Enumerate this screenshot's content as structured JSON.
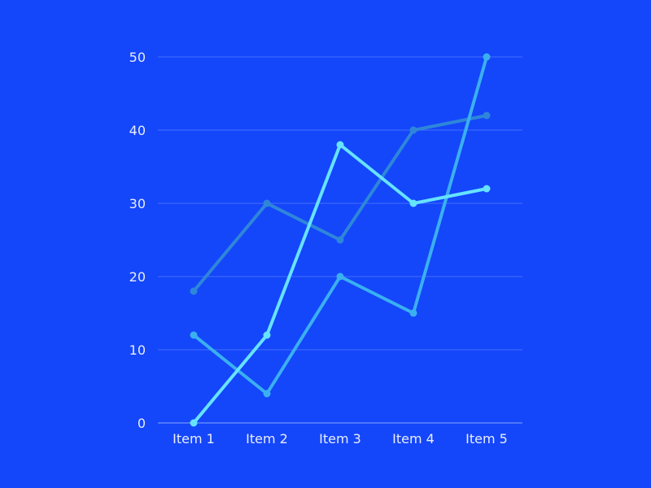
{
  "chart_data": {
    "type": "line",
    "title": "",
    "xlabel": "",
    "ylabel": "",
    "categories": [
      "Item 1",
      "Item 2",
      "Item 3",
      "Item 4",
      "Item 5"
    ],
    "ylim": [
      0,
      50
    ],
    "yticks": [
      0,
      10,
      20,
      30,
      40,
      50
    ],
    "grid": true,
    "legend": "none",
    "series": [
      {
        "values": [
          18,
          30,
          25,
          40,
          42
        ],
        "color": "#2E86D9"
      },
      {
        "values": [
          12,
          4,
          20,
          15,
          50
        ],
        "color": "#3AB0F0"
      },
      {
        "values": [
          0,
          12,
          38,
          30,
          32
        ],
        "color": "#66E3FF"
      }
    ],
    "colors": {
      "background": "#1446FA",
      "grid": "#5A82FF",
      "text": "#E8EEFF"
    }
  }
}
